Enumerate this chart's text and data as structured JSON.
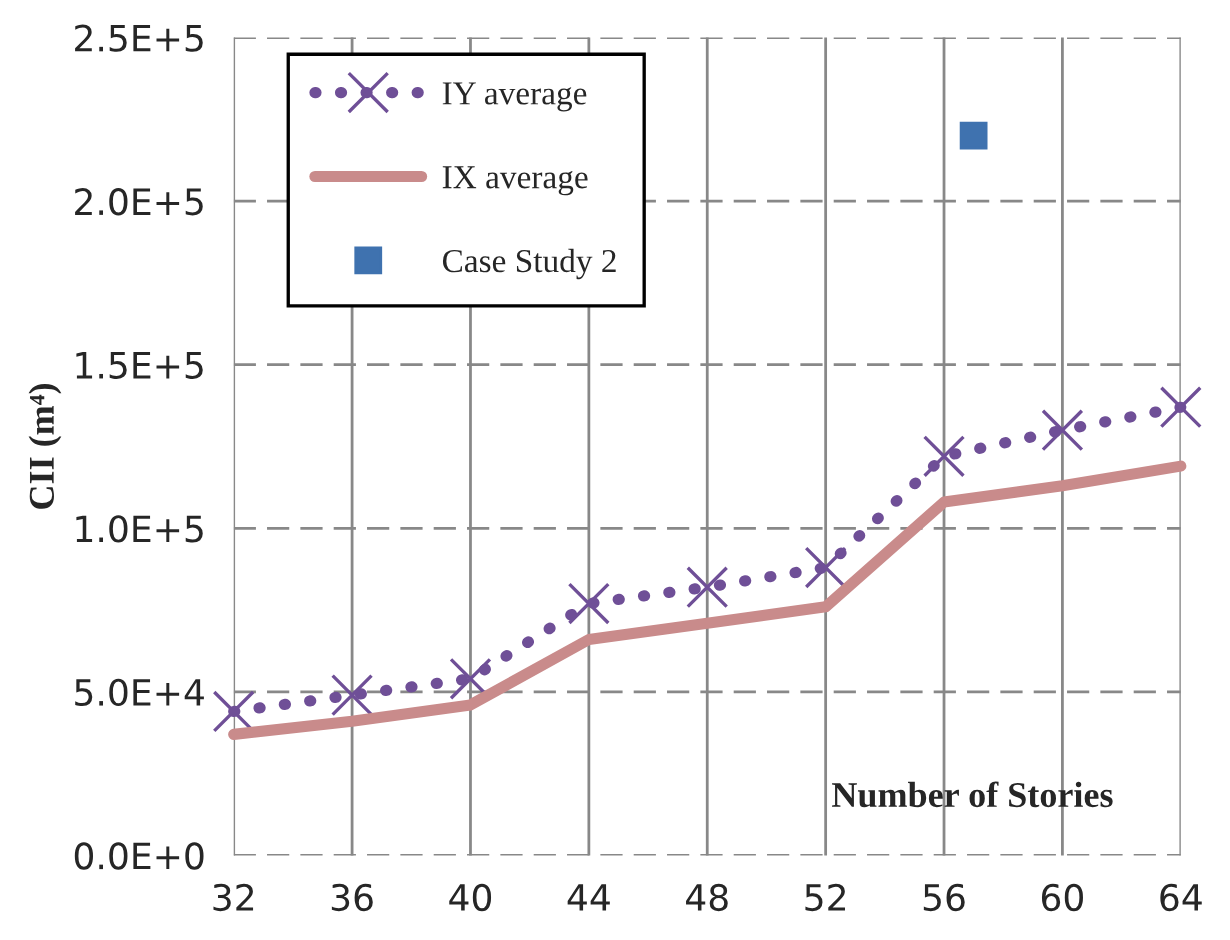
{
  "chart_data": {
    "type": "line",
    "xlabel": "Number of Stories",
    "ylabel": "CII (m⁴)",
    "x": [
      32,
      36,
      40,
      44,
      48,
      52,
      56,
      60,
      64
    ],
    "series": [
      {
        "name": "IY average",
        "color": "#6f4f97",
        "values": [
          44000,
          49000,
          54000,
          77000,
          82000,
          88000,
          122000,
          130000,
          137000
        ],
        "marker": "cross",
        "line_style": "dotted"
      },
      {
        "name": "IX average",
        "color": "#c98b8b",
        "values": [
          37000,
          41000,
          46000,
          66000,
          71000,
          76000,
          108000,
          113000,
          119000
        ],
        "marker": "none",
        "line_style": "solid"
      },
      {
        "name": "Case Study 2",
        "type": "scatter",
        "color": "#3f72af",
        "x": [
          57
        ],
        "values": [
          220000
        ],
        "marker": "square"
      }
    ],
    "xlim": [
      32,
      64
    ],
    "xticks": [
      32,
      36,
      40,
      44,
      48,
      52,
      56,
      60,
      64
    ],
    "ylim": [
      0,
      250000
    ],
    "yticks": [
      {
        "value": 0,
        "label": "0.0E+0"
      },
      {
        "value": 50000,
        "label": "5.0E+4"
      },
      {
        "value": 100000,
        "label": "1.0E+5"
      },
      {
        "value": 150000,
        "label": "1.5E+5"
      },
      {
        "value": 200000,
        "label": "2.0E+5"
      },
      {
        "value": 250000,
        "label": "2.5E+5"
      }
    ],
    "grid": true,
    "legend": "top left"
  }
}
